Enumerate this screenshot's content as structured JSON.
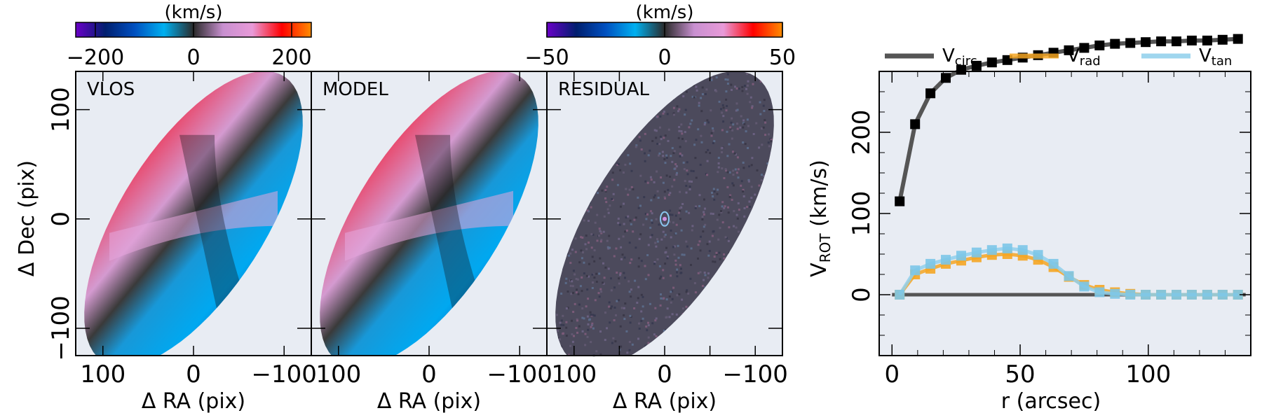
{
  "colorbars": [
    {
      "unit": "(km/s)",
      "ticks": [
        -200,
        0,
        200
      ],
      "range": [
        -240,
        240
      ]
    },
    {
      "unit": "(km/s)",
      "ticks": [
        -50,
        0,
        50
      ],
      "range": [
        -50,
        50
      ]
    }
  ],
  "colormap": [
    "#6a00c8",
    "#001e6e",
    "#0050c0",
    "#00b0f0",
    "#2a2a2a",
    "#c890d0",
    "#e89ad8",
    "#ff0000",
    "#ff8c00"
  ],
  "maps": {
    "panels": [
      {
        "name": "map-vlos",
        "label": "VLOS"
      },
      {
        "name": "map-model",
        "label": "MODEL"
      },
      {
        "name": "map-residual",
        "label": "RESIDUAL"
      }
    ],
    "xlabel": "Δ RA (pix)",
    "ylabel": "Δ Dec (pix)",
    "xlim": [
      130,
      -130
    ],
    "ylim": [
      -125,
      135
    ],
    "xticks": [
      100,
      0,
      -100
    ],
    "yticks": [
      100,
      0,
      -100
    ],
    "xticks_panel3": [
      100,
      50,
      0,
      -50,
      -100
    ],
    "ellipse": {
      "cx": 0,
      "cy": 0,
      "semi_major": 165,
      "semi_minor": 75,
      "pa_deg": 40
    },
    "background": "#e8ecf3"
  },
  "chart_data": {
    "type": "line",
    "xlabel": "r (arcsec)",
    "ylabel_main": "V",
    "ylabel_sub": "ROT",
    "ylabel_unit": " (km/s)",
    "xlim": [
      -5,
      140
    ],
    "ylim": [
      -75,
      275
    ],
    "xticks": [
      0,
      50,
      100
    ],
    "yticks": [
      0,
      100,
      200
    ],
    "series": [
      {
        "name": "V",
        "sub": "circ",
        "color": "#555555",
        "marker": "#000000",
        "x": [
          3,
          9,
          15,
          21,
          27,
          33,
          39,
          45,
          51,
          57,
          63,
          69,
          75,
          81,
          87,
          93,
          99,
          105,
          111,
          117,
          123,
          129,
          135
        ],
        "y": [
          115,
          210,
          248,
          267,
          277,
          282,
          286,
          289,
          292,
          295,
          298,
          301,
          304,
          307,
          309,
          310,
          311,
          312,
          312,
          313,
          313,
          314,
          315
        ]
      },
      {
        "name": "V",
        "sub": "rad",
        "color": "#f5a623",
        "marker": "#f5a623",
        "x": [
          3,
          9,
          15,
          21,
          27,
          33,
          39,
          45,
          51,
          57,
          63,
          69,
          75,
          81,
          87,
          93,
          99,
          105,
          111,
          117,
          123,
          129,
          135
        ],
        "y": [
          0,
          25,
          32,
          38,
          42,
          46,
          49,
          50,
          48,
          43,
          34,
          22,
          12,
          6,
          3,
          1,
          0,
          0,
          0,
          0,
          0,
          0,
          0
        ]
      },
      {
        "name": "V",
        "sub": "tan",
        "color": "#8fd0ec",
        "marker": "#7cc6e8",
        "x": [
          3,
          9,
          15,
          21,
          27,
          33,
          39,
          45,
          51,
          57,
          63,
          69,
          75,
          81,
          87,
          93,
          99,
          105,
          111,
          117,
          123,
          129,
          135
        ],
        "y": [
          0,
          30,
          38,
          43,
          48,
          52,
          55,
          57,
          55,
          49,
          38,
          23,
          10,
          3,
          1,
          0,
          0,
          0,
          0,
          0,
          0,
          0,
          0
        ]
      }
    ],
    "zero_line": {
      "color": "#555555",
      "y": 0
    },
    "legend_position": "top"
  }
}
